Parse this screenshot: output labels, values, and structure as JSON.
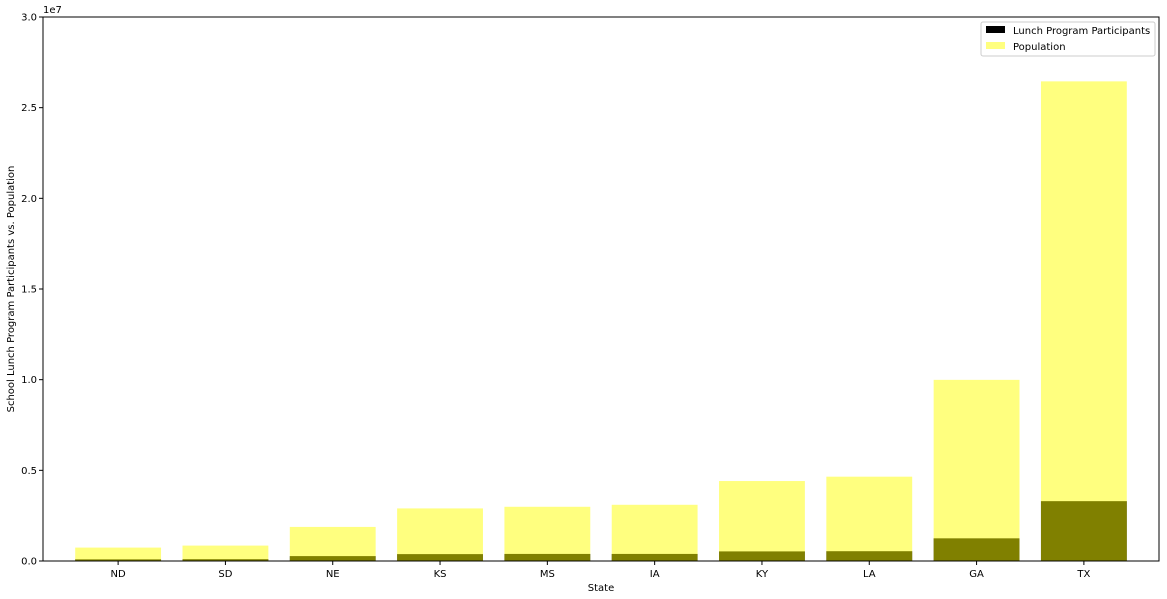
{
  "chart_data": {
    "type": "bar",
    "categories": [
      "ND",
      "SD",
      "NE",
      "KS",
      "MS",
      "IA",
      "KY",
      "LA",
      "GA",
      "TX"
    ],
    "series": [
      {
        "name": "Lunch Program Participants",
        "values": [
          90000,
          100000,
          270000,
          380000,
          390000,
          390000,
          530000,
          540000,
          1250000,
          3300000
        ],
        "color": "#000000",
        "opacity": 1.0
      },
      {
        "name": "Population",
        "values": [
          740000,
          850000,
          1880000,
          2900000,
          2990000,
          3100000,
          4410000,
          4650000,
          9990000,
          26450000
        ],
        "color": "#ffff00",
        "opacity": 0.5
      }
    ],
    "xlabel": "State",
    "ylabel": "School Lunch Program Participants vs. Population",
    "ylim": [
      0,
      30000000
    ],
    "yticks": [
      0,
      5000000,
      10000000,
      15000000,
      20000000,
      25000000,
      30000000
    ],
    "ytick_labels": [
      "0.0",
      "0.5",
      "1.0",
      "1.5",
      "2.0",
      "2.5",
      "3.0"
    ],
    "offset_text": "1e7",
    "grid": false,
    "legend_position": "top-right"
  }
}
